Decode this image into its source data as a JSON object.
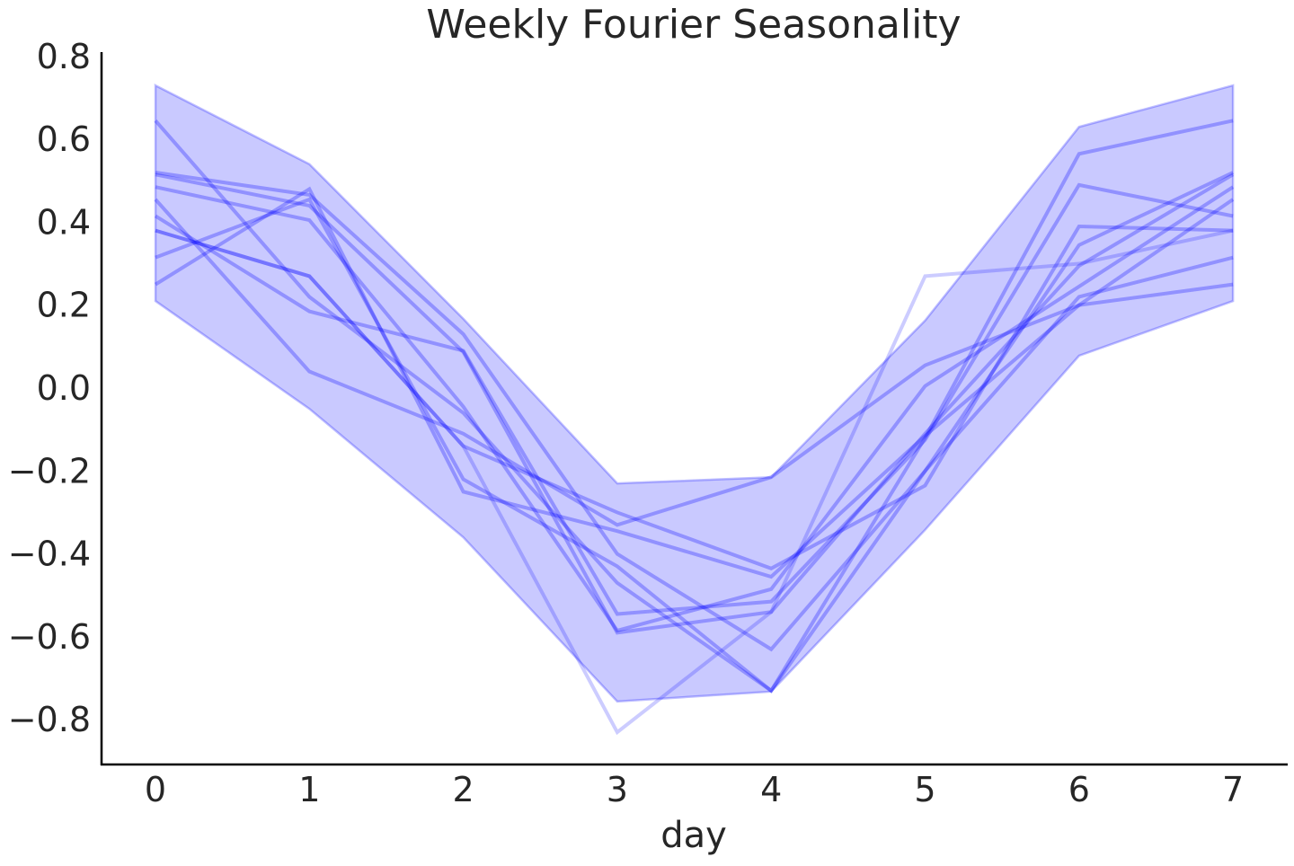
{
  "chart_data": {
    "type": "line",
    "title": "Weekly Fourier Seasonality",
    "xlabel": "day",
    "ylabel": "",
    "xlim": [
      -0.35,
      7.35
    ],
    "ylim": [
      -0.905,
      0.8
    ],
    "x": [
      0,
      1,
      2,
      3,
      4,
      5,
      6,
      7
    ],
    "x_ticks": [
      "0",
      "1",
      "2",
      "3",
      "4",
      "5",
      "6",
      "7"
    ],
    "y_ticks": [
      -0.8,
      -0.6,
      -0.4,
      -0.2,
      0.0,
      0.2,
      0.4,
      0.6,
      0.8
    ],
    "y_tick_labels": [
      "−0.8",
      "−0.6",
      "−0.4",
      "−0.2",
      "0.0",
      "0.2",
      "0.4",
      "0.6",
      "0.8"
    ],
    "grid": false,
    "color": "#0000ff",
    "band": {
      "upper": [
        0.73,
        0.54,
        0.167,
        -0.23,
        -0.215,
        0.163,
        0.63,
        0.73
      ],
      "lower": [
        0.21,
        -0.05,
        -0.36,
        -0.756,
        -0.732,
        -0.342,
        0.078,
        0.21
      ]
    },
    "series": [
      {
        "values": [
          0.645,
          0.22,
          -0.06,
          -0.47,
          -0.73,
          -0.12,
          0.565,
          0.645
        ]
      },
      {
        "values": [
          0.52,
          0.466,
          0.13,
          -0.4,
          -0.63,
          -0.2,
          0.345,
          0.52
        ]
      },
      {
        "values": [
          0.515,
          0.44,
          0.087,
          -0.59,
          -0.54,
          -0.11,
          0.295,
          0.515
        ]
      },
      {
        "values": [
          0.485,
          0.405,
          -0.045,
          -0.585,
          -0.485,
          0.005,
          0.245,
          0.485
        ]
      },
      {
        "values": [
          0.455,
          0.04,
          -0.11,
          -0.33,
          -0.215,
          0.055,
          0.2,
          0.455
        ]
      },
      {
        "values": [
          0.415,
          0.185,
          0.09,
          -0.545,
          -0.515,
          -0.125,
          0.49,
          0.415
        ]
      },
      {
        "values": [
          0.38,
          0.27,
          -0.14,
          -0.3,
          -0.435,
          -0.235,
          0.39,
          0.38
        ]
      },
      {
        "values": [
          0.315,
          0.455,
          -0.22,
          -0.43,
          -0.73,
          -0.2,
          0.22,
          0.315
        ]
      },
      {
        "values": [
          0.25,
          0.48,
          -0.25,
          -0.345,
          -0.455,
          -0.115,
          0.2,
          0.25
        ]
      },
      {
        "values": [
          0.38,
          0.27,
          -0.14,
          -0.83,
          -0.54,
          0.27,
          0.3,
          0.38
        ],
        "faint": true
      }
    ]
  }
}
